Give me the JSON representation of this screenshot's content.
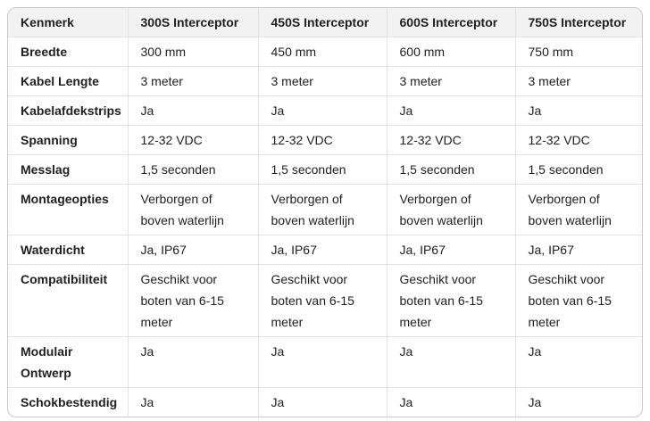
{
  "table": {
    "header": {
      "feature_column": "Kenmerk",
      "product_columns": [
        "300S Interceptor",
        "450S Interceptor",
        "600S Interceptor",
        "750S Interceptor"
      ]
    },
    "rows": [
      {
        "label": "Breedte",
        "values": [
          "300 mm",
          "450 mm",
          "600 mm",
          "750 mm"
        ]
      },
      {
        "label": "Kabel Lengte",
        "values": [
          "3 meter",
          "3 meter",
          "3 meter",
          "3 meter"
        ]
      },
      {
        "label": "Kabelafdekstrips",
        "values": [
          "Ja",
          "Ja",
          "Ja",
          "Ja"
        ]
      },
      {
        "label": "Spanning",
        "values": [
          "12-32 VDC",
          "12-32 VDC",
          "12-32 VDC",
          "12-32 VDC"
        ]
      },
      {
        "label": "Messlag",
        "values": [
          "1,5 seconden",
          "1,5 seconden",
          "1,5 seconden",
          "1,5 seconden"
        ]
      },
      {
        "label": "Montageopties",
        "values": [
          "Verborgen of boven waterlijn",
          "Verborgen of boven waterlijn",
          "Verborgen of boven waterlijn",
          "Verborgen of boven waterlijn"
        ]
      },
      {
        "label": "Waterdicht",
        "values": [
          "Ja, IP67",
          "Ja, IP67",
          "Ja, IP67",
          "Ja, IP67"
        ]
      },
      {
        "label": "Compatibiliteit",
        "values": [
          "Geschikt voor boten van 6-15 meter",
          "Geschikt voor boten van 6-15 meter",
          "Geschikt voor boten van 6-15 meter",
          "Geschikt voor boten van 6-15 meter"
        ]
      },
      {
        "label": "Modulair Ontwerp",
        "values": [
          "Ja",
          "Ja",
          "Ja",
          "Ja"
        ]
      },
      {
        "label": "Schokbestendig",
        "values": [
          "Ja",
          "Ja",
          "Ja",
          "Ja"
        ]
      }
    ],
    "colors": {
      "background": "#ffffff",
      "header_background": "#f2f2f2",
      "border_inner": "#e3e3e3",
      "border_outer": "#c9c9c9",
      "text": "#202020"
    }
  }
}
